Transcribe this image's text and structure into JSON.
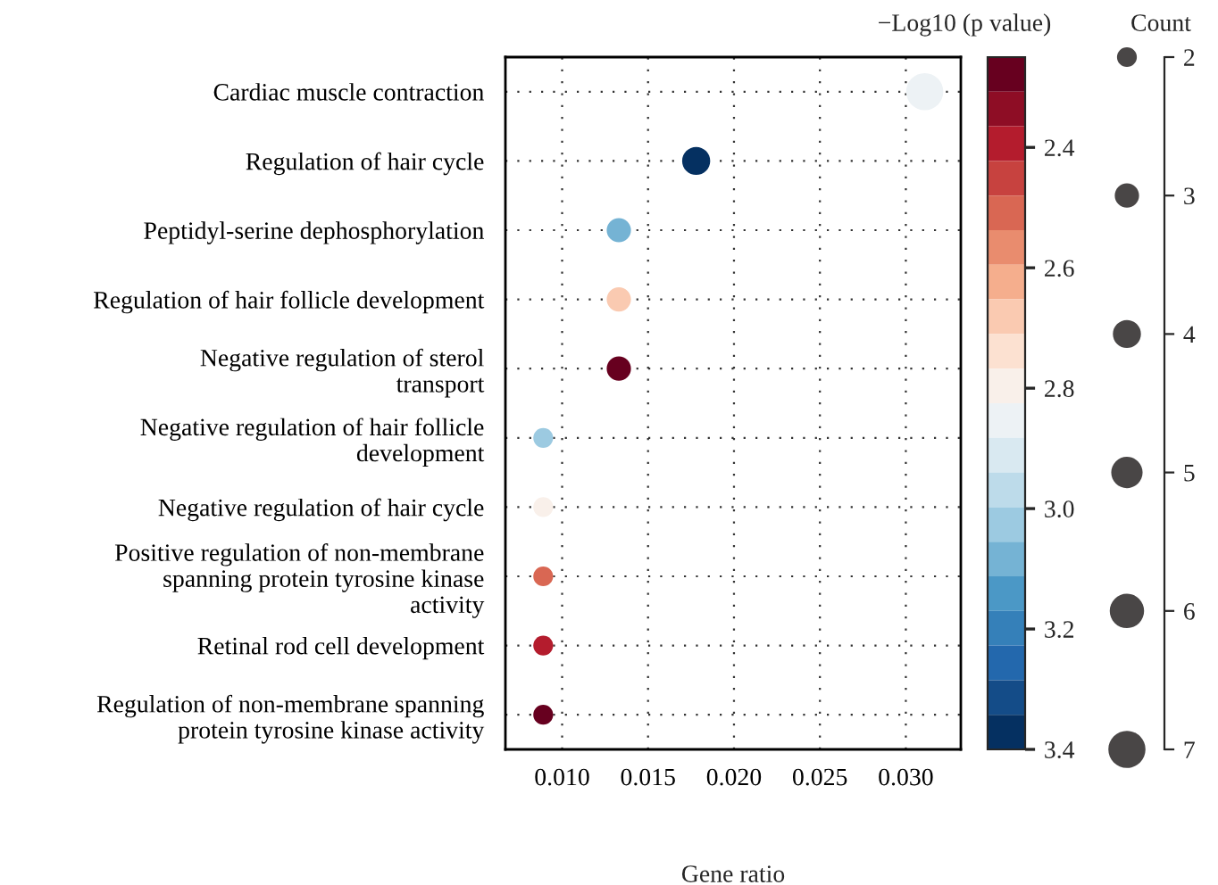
{
  "chart_data": {
    "type": "bubble",
    "orientation": "horizontal",
    "categories": [
      "Cardiac muscle contraction",
      "Regulation of hair cycle",
      "Peptidyl-serine dephosphorylation",
      "Regulation of hair follicle development",
      "Negative regulation of sterol\ntransport",
      "Negative regulation of hair follicle\ndevelopment",
      "Negative regulation of hair cycle",
      "Positive regulation of non-membrane\nspanning protein tyrosine kinase\nactivity",
      "Retinal rod cell development",
      "Regulation of non-membrane spanning\nprotein tyrosine kinase activity"
    ],
    "values": [
      0.0311,
      0.0178,
      0.0133,
      0.0133,
      0.0133,
      0.0089,
      0.0089,
      0.0089,
      0.0089,
      0.0089
    ],
    "sizes": [
      7,
      4,
      3,
      3,
      3,
      2,
      2,
      2,
      2,
      2
    ],
    "size_legend": [
      2,
      3,
      4,
      5,
      6,
      7
    ],
    "cvalues": [
      2.83,
      3.36,
      3.06,
      2.7,
      2.27,
      3.0,
      2.8,
      2.5,
      2.4,
      2.3
    ],
    "xlim": [
      0.0067,
      0.0332
    ],
    "xticks": [
      {
        "value": 0.01,
        "label": "0.010"
      },
      {
        "value": 0.015,
        "label": "0.015"
      },
      {
        "value": 0.02,
        "label": "0.020"
      },
      {
        "value": 0.025,
        "label": "0.025"
      },
      {
        "value": 0.03,
        "label": "0.030"
      }
    ],
    "clim": [
      2.25,
      3.4
    ],
    "cticks": [
      2.4,
      2.6,
      2.8,
      {
        "value": 3.0,
        "label": "3.0"
      },
      3.2,
      3.4
    ],
    "xlabel": "Gene ratio",
    "clabel": "−Log10 (p value)",
    "legend_title": "Count",
    "grid": true
  }
}
